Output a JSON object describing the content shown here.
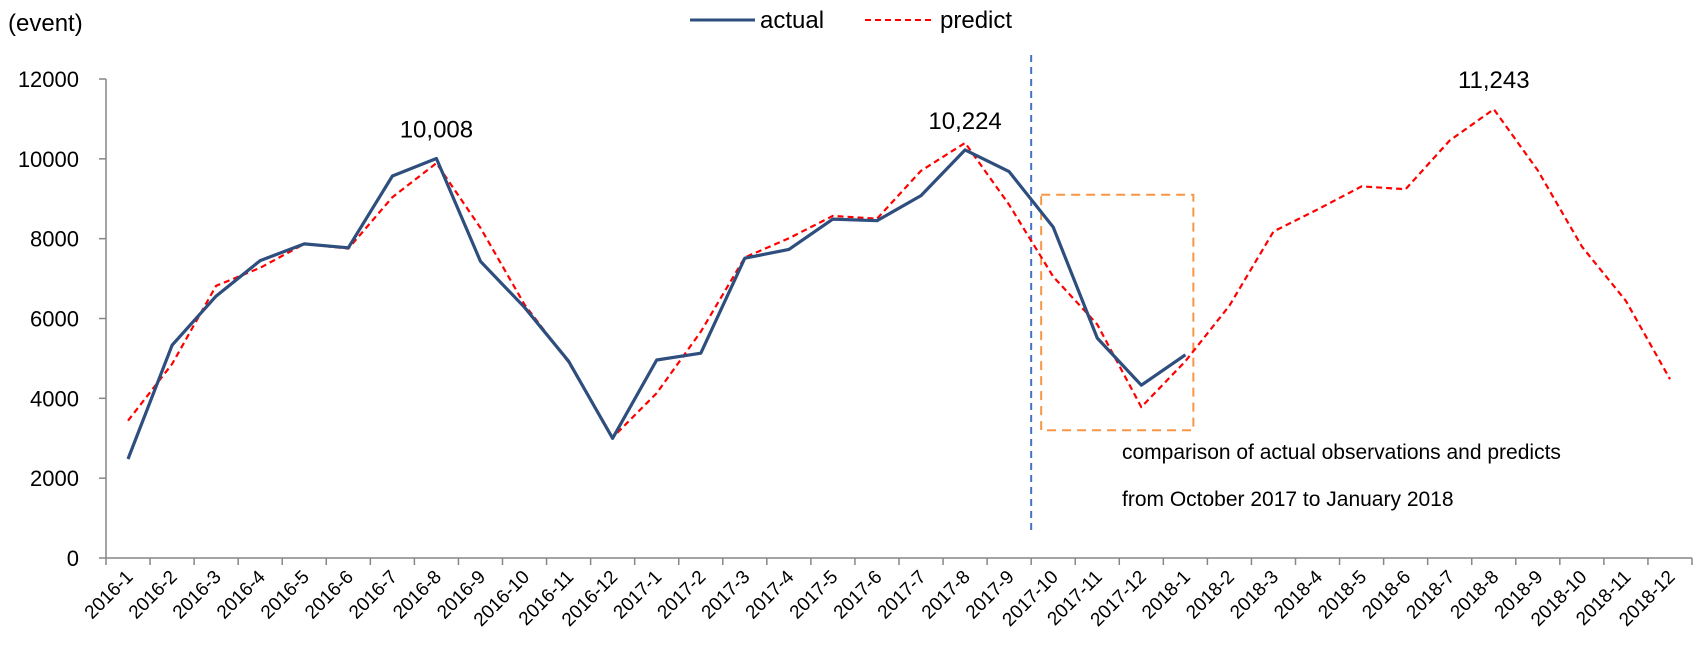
{
  "chart_data": {
    "type": "line",
    "title": "",
    "xlabel": "",
    "ylabel": "(event)",
    "ylim": [
      0,
      12000
    ],
    "yticks": [
      0,
      2000,
      4000,
      6000,
      8000,
      10000,
      12000
    ],
    "ytick_labels": [
      "0",
      "2000",
      "4000",
      "6000",
      "8000",
      "10000",
      "12000"
    ],
    "grid": false,
    "legend_position": "top-center",
    "categories": [
      "2016-1",
      "2016-2",
      "2016-3",
      "2016-4",
      "2016-5",
      "2016-6",
      "2016-7",
      "2016-8",
      "2016-9",
      "2016-10",
      "2016-11",
      "2016-12",
      "2017-1",
      "2017-2",
      "2017-3",
      "2017-4",
      "2017-5",
      "2017-6",
      "2017-7",
      "2017-8",
      "2017-9",
      "2017-10",
      "2017-11",
      "2017-12",
      "2018-1",
      "2018-2",
      "2018-3",
      "2018-4",
      "2018-5",
      "2018-6",
      "2018-7",
      "2018-8",
      "2018-9",
      "2018-10",
      "2018-11",
      "2018-12"
    ],
    "series": [
      {
        "name": "actual",
        "color": "#2e4e7e",
        "style": "solid",
        "values": [
          2480,
          5330,
          6560,
          7450,
          7870,
          7770,
          9570,
          10008,
          7430,
          6280,
          4930,
          3000,
          4960,
          5130,
          7510,
          7730,
          8490,
          8450,
          9080,
          10224,
          9680,
          8290,
          5510,
          4330,
          5090,
          null,
          null,
          null,
          null,
          null,
          null,
          null,
          null,
          null,
          null,
          null
        ]
      },
      {
        "name": "predict",
        "color": "#ff0000",
        "style": "dashed",
        "values": [
          3440,
          4860,
          6820,
          7270,
          7870,
          7750,
          9040,
          9890,
          8270,
          6350,
          4900,
          3020,
          4130,
          5670,
          7530,
          8010,
          8570,
          8500,
          9700,
          10400,
          8850,
          7050,
          5850,
          3780,
          4930,
          6320,
          8180,
          8730,
          9310,
          9240,
          10460,
          11243,
          9710,
          7800,
          6440,
          4480
        ]
      }
    ],
    "annotations": [
      {
        "text": "10,008",
        "category_index": 7,
        "value": 10008
      },
      {
        "text": "10,224",
        "category_index": 19,
        "value": 10224
      },
      {
        "text": "11,243",
        "category_index": 31,
        "value": 11243
      }
    ],
    "divider": {
      "category_index": 20.5,
      "color": "#4472c4"
    },
    "highlight_box": {
      "from_index": 20.5,
      "to_index": 24,
      "y_from": 3200,
      "y_to": 9100,
      "color": "#f79646"
    },
    "note_lines": [
      "comparison of actual observations and predicts",
      "from October 2017 to January 2018"
    ]
  }
}
